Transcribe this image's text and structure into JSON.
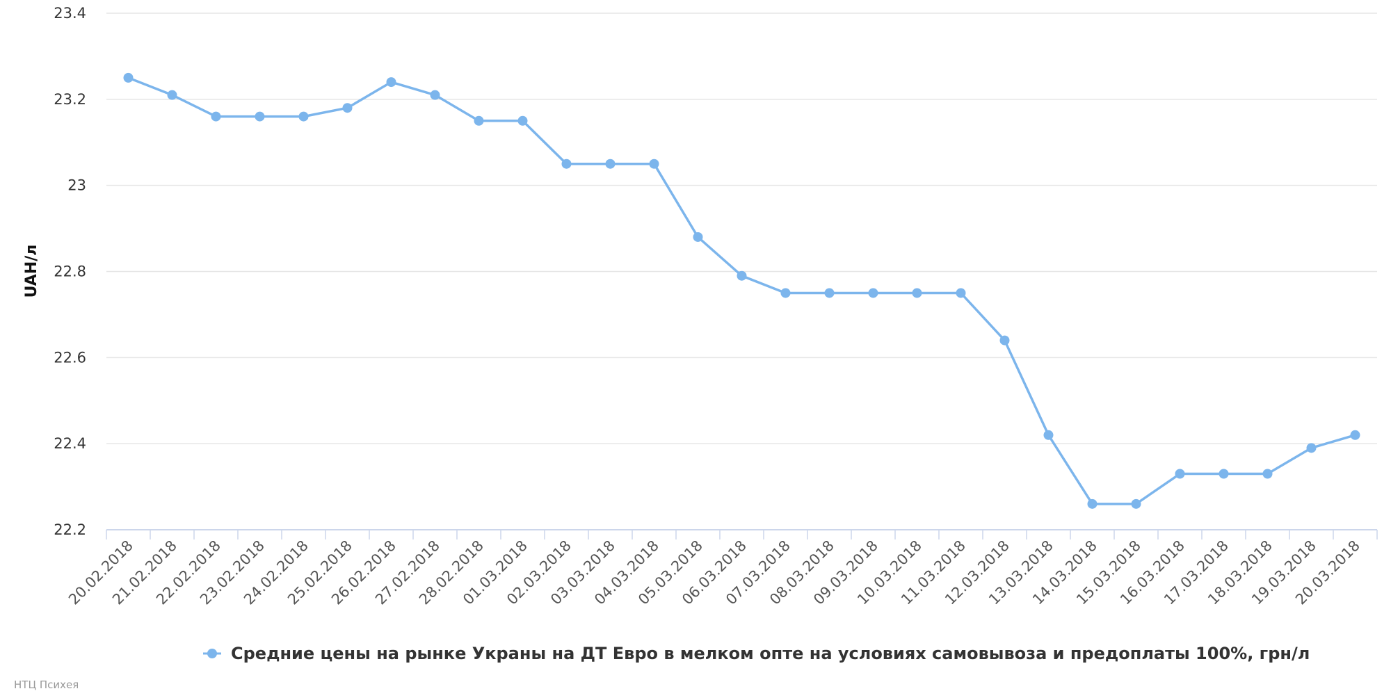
{
  "chart_data": {
    "type": "line",
    "title": "",
    "xlabel": "",
    "ylabel": "UAH/л",
    "ylim": [
      22.2,
      23.4
    ],
    "yticks": [
      "23.4",
      "23.2",
      "23",
      "22.8",
      "22.6",
      "22.4",
      "22.2"
    ],
    "grid": "horizontal",
    "legend_position": "bottom-center",
    "colors": {
      "series": "#7cb5ec",
      "grid": "#e6e6e6",
      "axis": "#ccd6eb"
    },
    "categories": [
      "20.02.2018",
      "21.02.2018",
      "22.02.2018",
      "23.02.2018",
      "24.02.2018",
      "25.02.2018",
      "26.02.2018",
      "27.02.2018",
      "28.02.2018",
      "01.03.2018",
      "02.03.2018",
      "03.03.2018",
      "04.03.2018",
      "05.03.2018",
      "06.03.2018",
      "07.03.2018",
      "08.03.2018",
      "09.03.2018",
      "10.03.2018",
      "11.03.2018",
      "12.03.2018",
      "13.03.2018",
      "14.03.2018",
      "15.03.2018",
      "16.03.2018",
      "17.03.2018",
      "18.03.2018",
      "19.03.2018",
      "20.03.2018"
    ],
    "series": [
      {
        "name": "Средние цены на рынке Украны на ДТ Евро в мелком опте на условиях самовывоза и предоплаты 100%, грн/л",
        "values": [
          23.25,
          23.21,
          23.16,
          23.16,
          23.16,
          23.18,
          23.24,
          23.21,
          23.15,
          23.15,
          23.05,
          23.05,
          23.05,
          22.88,
          22.79,
          22.75,
          22.75,
          22.75,
          22.75,
          22.75,
          22.64,
          22.42,
          22.26,
          22.26,
          22.33,
          22.33,
          22.33,
          22.39,
          22.42
        ]
      }
    ],
    "credit": "НТЦ Психея"
  }
}
